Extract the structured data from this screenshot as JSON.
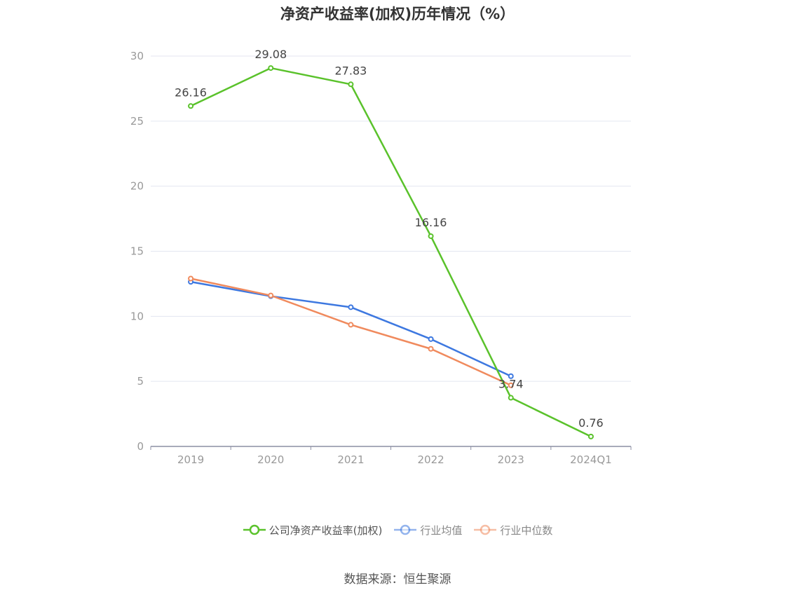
{
  "title": "净资产收益率(加权)历年情况（%）",
  "source": "数据来源：恒生聚源",
  "colors": {
    "company": "#5ac22b",
    "industry_avg": "#3d78e0",
    "industry_median": "#f08a5d",
    "grid": "#e3e6f0",
    "axis": "#8c8fa3",
    "tick_text": "#999999",
    "label_text": "#444444"
  },
  "chart_data": {
    "type": "line",
    "x": [
      "2019",
      "2020",
      "2021",
      "2022",
      "2023",
      "2024Q1"
    ],
    "ylim": [
      0,
      30
    ],
    "yticks": [
      0,
      5,
      10,
      15,
      20,
      25,
      30
    ],
    "grid": true,
    "legend_position": "bottom",
    "series": [
      {
        "name": "公司净资产收益率(加权)",
        "color_key": "company",
        "values": [
          26.16,
          29.08,
          27.83,
          16.16,
          3.74,
          0.76
        ],
        "labels": [
          "26.16",
          "29.08",
          "27.83",
          "16.16",
          "3.74",
          "0.76"
        ]
      },
      {
        "name": "行业均值",
        "color_key": "industry_avg",
        "values": [
          12.65,
          11.55,
          10.7,
          8.25,
          5.4,
          null
        ]
      },
      {
        "name": "行业中位数",
        "color_key": "industry_median",
        "values": [
          12.9,
          11.6,
          9.35,
          7.5,
          4.7,
          null
        ]
      }
    ]
  }
}
